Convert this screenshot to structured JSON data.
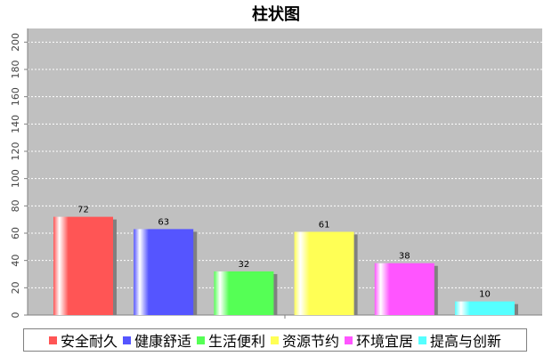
{
  "chart_data": {
    "type": "bar",
    "title": "柱状图",
    "categories": [
      "安全耐久",
      "健康舒适",
      "生活便利",
      "资源节约",
      "环境宜居",
      "提高与创新"
    ],
    "values": [
      72,
      63,
      32,
      61,
      38,
      10
    ],
    "colors": [
      "#ff5555",
      "#5555ff",
      "#55ff55",
      "#ffff55",
      "#ff55ff",
      "#55ffff"
    ],
    "ylim": [
      0,
      210
    ],
    "yticks": [
      0,
      20,
      40,
      60,
      80,
      100,
      120,
      140,
      160,
      180,
      200
    ],
    "grid": true,
    "legend_position": "bottom",
    "plot_background": "#c0c0c0"
  }
}
